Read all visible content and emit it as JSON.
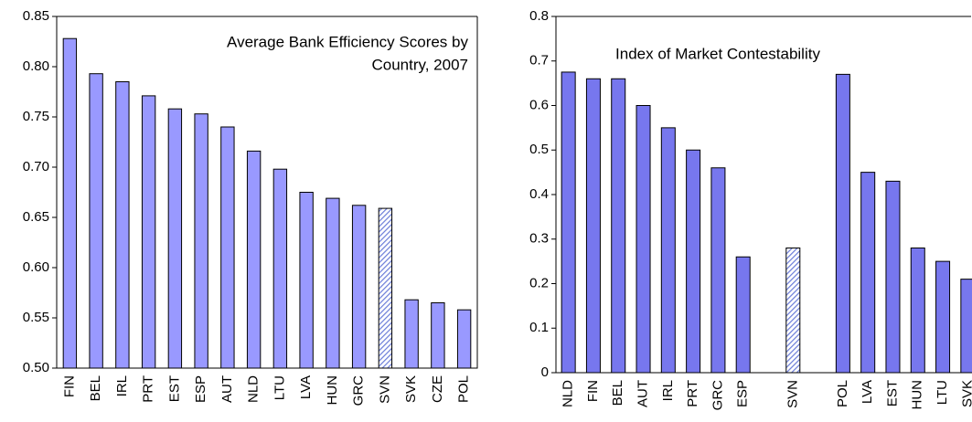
{
  "chart_data": [
    {
      "type": "bar",
      "title": [
        "Average Bank Efficiency Scores by",
        "Country, 2007"
      ],
      "categories": [
        "FIN",
        "BEL",
        "IRL",
        "PRT",
        "EST",
        "ESP",
        "AUT",
        "NLD",
        "LTU",
        "LVA",
        "HUN",
        "GRC",
        "SVN",
        "SVK",
        "CZE",
        "POL"
      ],
      "values": [
        0.828,
        0.793,
        0.785,
        0.771,
        0.758,
        0.753,
        0.74,
        0.716,
        0.698,
        0.675,
        0.669,
        0.662,
        0.659,
        0.568,
        0.565,
        0.558
      ],
      "color": "#9999ff",
      "hatched_categories": [
        "SVN"
      ],
      "ylim": [
        0.5,
        0.85
      ],
      "yticks": [
        {
          "value": 0.5,
          "label": "0.50"
        },
        {
          "value": 0.55,
          "label": "0.55"
        },
        {
          "value": 0.6,
          "label": "0.60"
        },
        {
          "value": 0.65,
          "label": "0.65"
        },
        {
          "value": 0.7,
          "label": "0.70"
        },
        {
          "value": 0.75,
          "label": "0.75"
        },
        {
          "value": 0.8,
          "label": "0.80"
        },
        {
          "value": 0.85,
          "label": "0.85"
        }
      ],
      "grid": false
    },
    {
      "type": "bar",
      "title": [
        "Index of Market Contestability"
      ],
      "categories": [
        "NLD",
        "FIN",
        "BEL",
        "AUT",
        "IRL",
        "PRT",
        "GRC",
        "ESP",
        null,
        "SVN",
        null,
        "POL",
        "LVA",
        "EST",
        "HUN",
        "LTU",
        "SVK"
      ],
      "values": [
        0.675,
        0.66,
        0.66,
        0.6,
        0.55,
        0.5,
        0.46,
        0.26,
        null,
        0.28,
        null,
        0.67,
        0.45,
        0.43,
        0.28,
        0.25,
        0.21
      ],
      "color": "#7777ee",
      "hatched_categories": [
        "SVN"
      ],
      "ylim": [
        0,
        0.8
      ],
      "yticks": [
        0,
        0.1,
        0.2,
        0.3,
        0.4,
        0.5,
        0.6,
        0.7,
        0.8
      ],
      "grid": false
    }
  ]
}
